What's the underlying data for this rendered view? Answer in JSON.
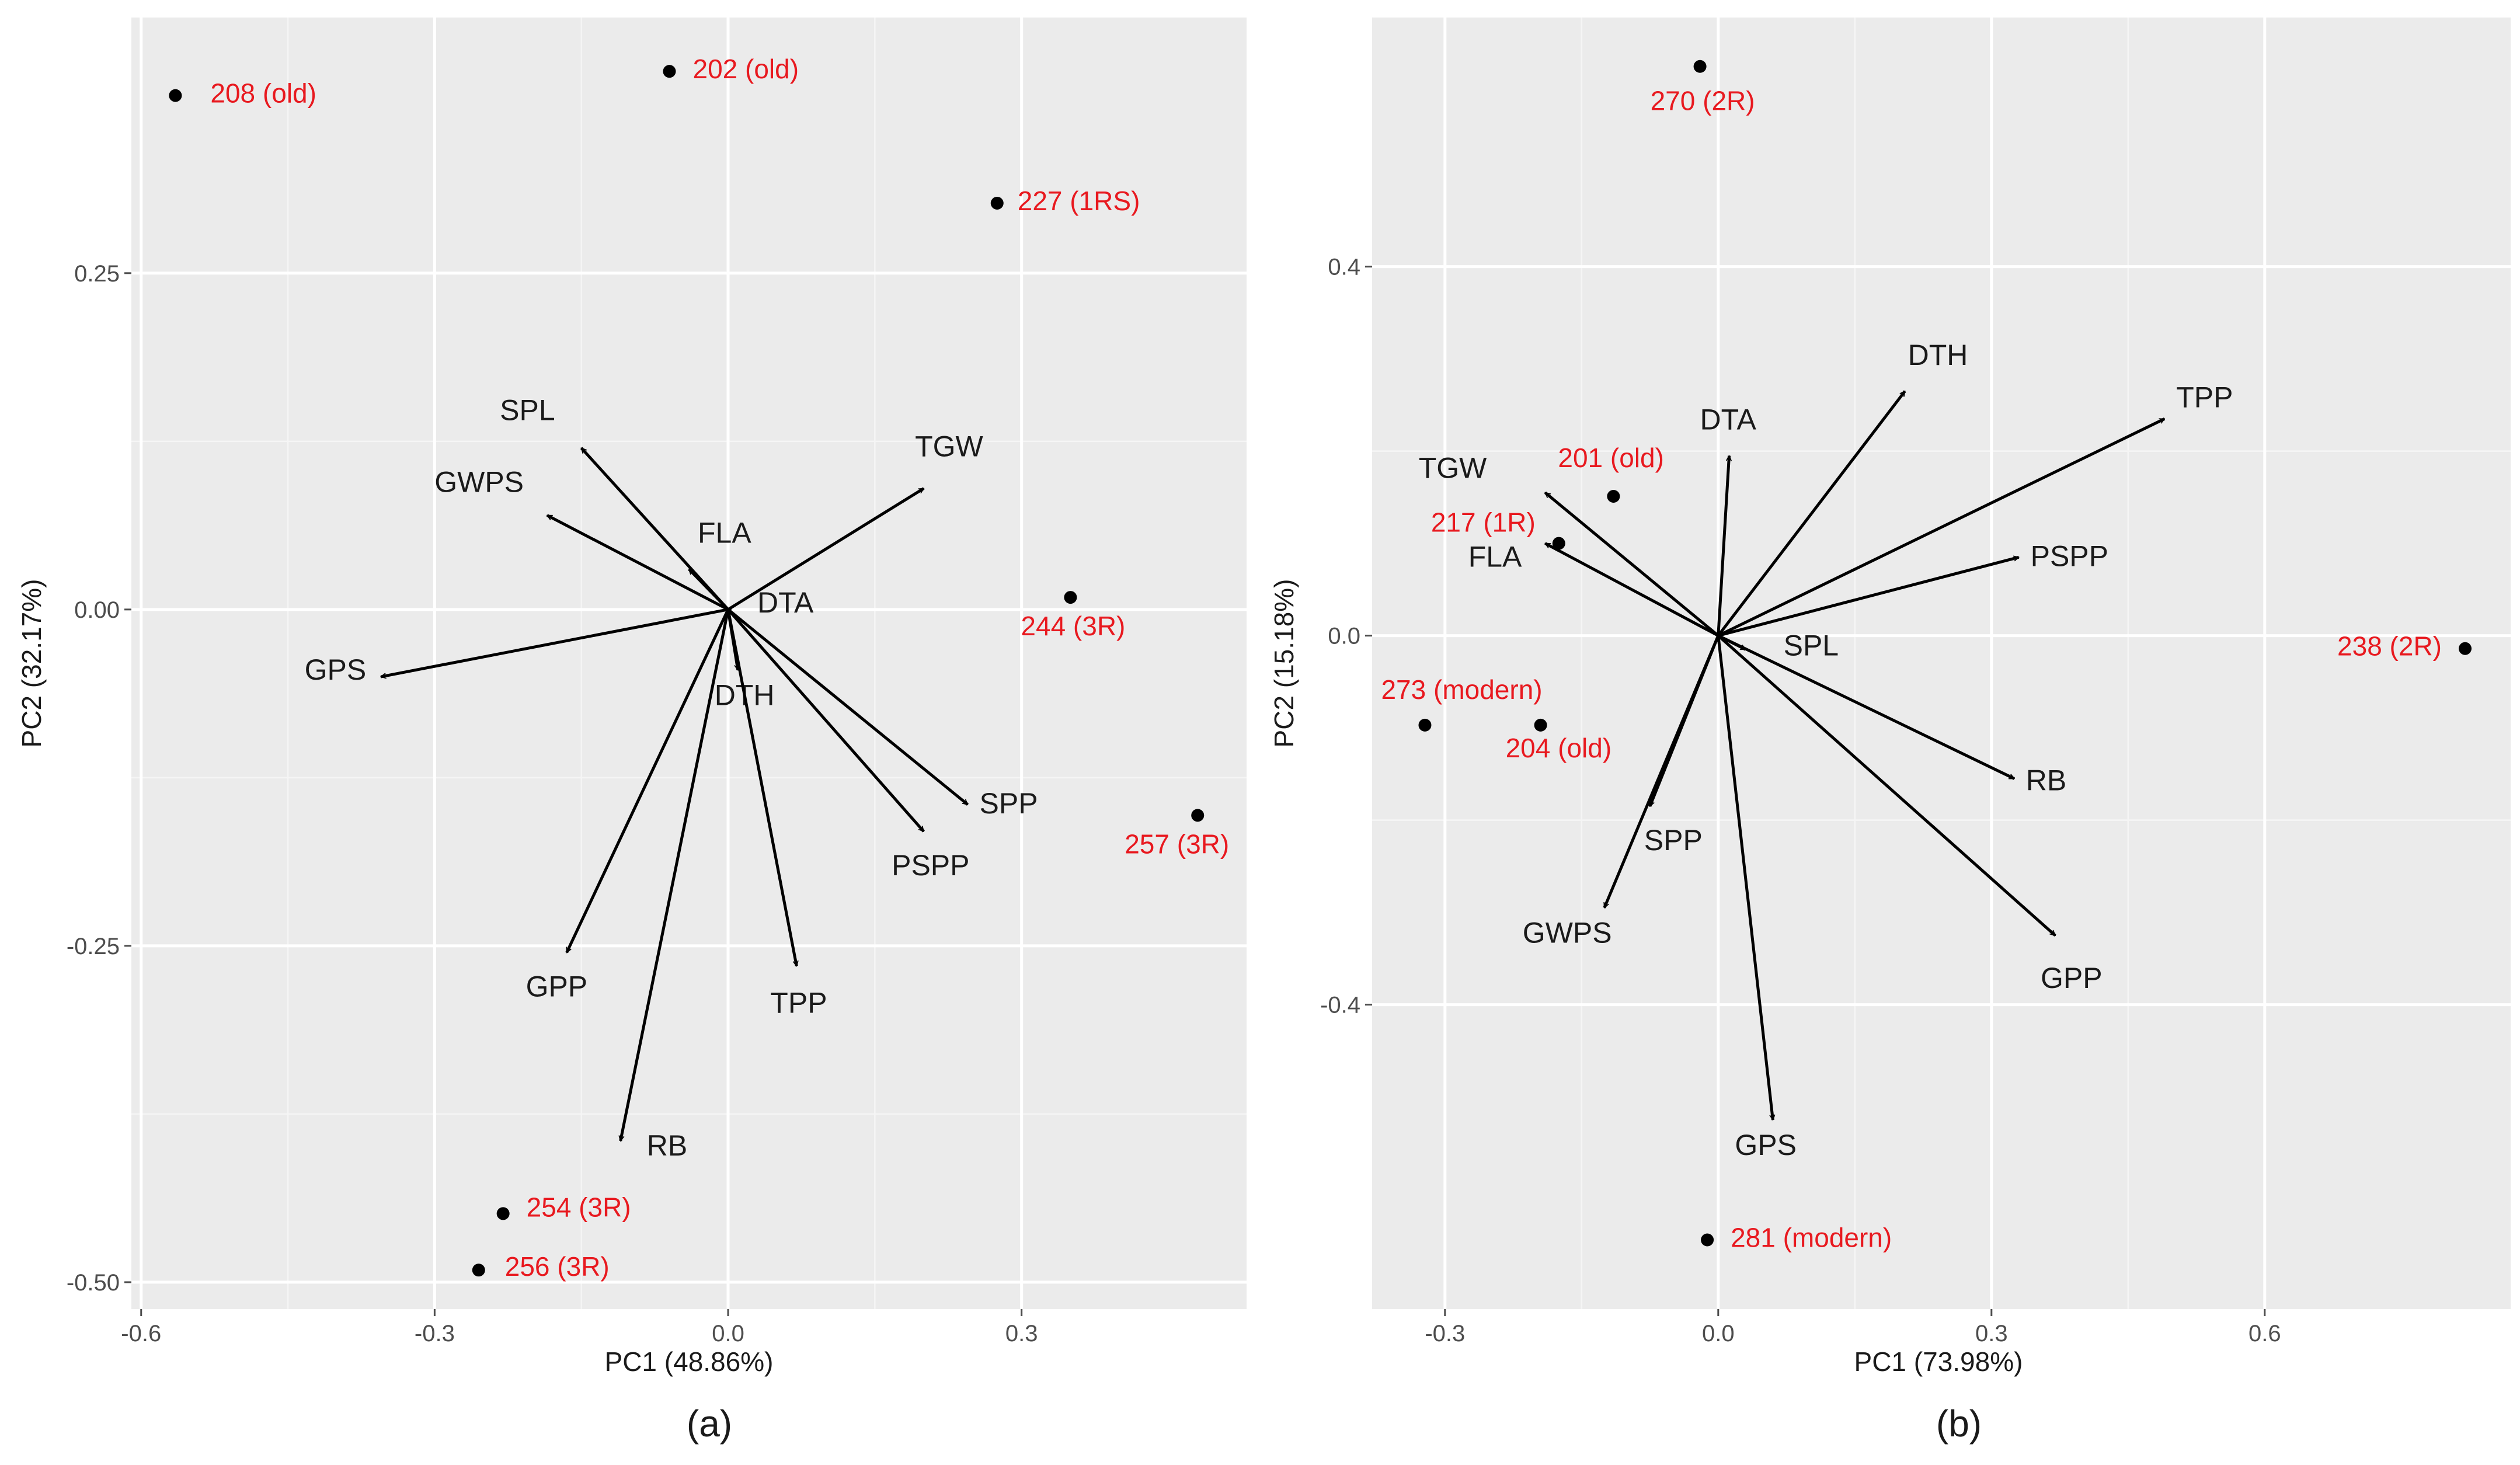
{
  "figure": {
    "colors": {
      "panel_bg": "#ebebeb",
      "label_red": "#e8191f",
      "arrow": "#000000",
      "point": "#000000"
    }
  },
  "chart_data": [
    {
      "id": "a",
      "type": "scatter",
      "subtype": "pca-biplot",
      "caption": "(a)",
      "xlabel": "PC1 (48.86%)",
      "ylabel": "PC2 (32.17%)",
      "xlim": [
        -0.61,
        0.53
      ],
      "ylim": [
        -0.52,
        0.44
      ],
      "xticks": [
        -0.6,
        -0.3,
        0.0,
        0.3
      ],
      "xtick_labels": [
        "-0.6",
        "-0.3",
        "0.0",
        "0.3"
      ],
      "yticks": [
        -0.5,
        -0.25,
        0.0,
        0.25
      ],
      "ytick_labels": [
        "-0.50",
        "-0.25",
        "0.00",
        "0.25"
      ],
      "points": [
        {
          "label": "208 (old)",
          "x": -0.565,
          "y": 0.382
        },
        {
          "label": "202 (old)",
          "x": -0.06,
          "y": 0.4
        },
        {
          "label": "227 (1RS)",
          "x": 0.275,
          "y": 0.302
        },
        {
          "label": "244 (3R)",
          "x": 0.35,
          "y": 0.009
        },
        {
          "label": "257 (3R)",
          "x": 0.48,
          "y": -0.153
        },
        {
          "label": "254 (3R)",
          "x": -0.23,
          "y": -0.449
        },
        {
          "label": "256 (3R)",
          "x": -0.255,
          "y": -0.491
        }
      ],
      "vectors": [
        {
          "label": "SPL",
          "x": -0.15,
          "y": 0.12
        },
        {
          "label": "GWPS",
          "x": -0.185,
          "y": 0.07
        },
        {
          "label": "FLA",
          "x": -0.04,
          "y": 0.03
        },
        {
          "label": "TGW",
          "x": 0.2,
          "y": 0.09
        },
        {
          "label": "DTA",
          "x": 0.003,
          "y": 0.0
        },
        {
          "label": "GPS",
          "x": -0.355,
          "y": -0.05
        },
        {
          "label": "DTH",
          "x": 0.01,
          "y": -0.045
        },
        {
          "label": "SPP",
          "x": 0.245,
          "y": -0.145
        },
        {
          "label": "PSPP",
          "x": 0.2,
          "y": -0.165
        },
        {
          "label": "GPP",
          "x": -0.165,
          "y": -0.255
        },
        {
          "label": "TPP",
          "x": 0.07,
          "y": -0.265
        },
        {
          "label": "RB",
          "x": -0.11,
          "y": -0.395
        }
      ]
    },
    {
      "id": "b",
      "type": "scatter",
      "subtype": "pca-biplot",
      "caption": "(b)",
      "xlabel": "PC1 (73.98%)",
      "ylabel": "PC2 (15.18%)",
      "xlim": [
        -0.38,
        0.87
      ],
      "ylim": [
        -0.73,
        0.67
      ],
      "xticks": [
        -0.3,
        0.0,
        0.3,
        0.6
      ],
      "xtick_labels": [
        "-0.3",
        "0.0",
        "0.3",
        "0.6"
      ],
      "yticks": [
        -0.4,
        0.0,
        0.4
      ],
      "ytick_labels": [
        "-0.4",
        "0.0",
        "0.4"
      ],
      "points": [
        {
          "label": "270 (2R)",
          "x": -0.02,
          "y": 0.617
        },
        {
          "label": "201 (old)",
          "x": -0.115,
          "y": 0.151
        },
        {
          "label": "217 (1R)",
          "x": -0.175,
          "y": 0.1
        },
        {
          "label": "238 (2R)",
          "x": 0.82,
          "y": -0.014
        },
        {
          "label": "273 (modern)",
          "x": -0.322,
          "y": -0.097
        },
        {
          "label": "204 (old)",
          "x": -0.195,
          "y": -0.097
        },
        {
          "label": "281 (modern)",
          "x": -0.012,
          "y": -0.655
        }
      ],
      "vectors": [
        {
          "label": "DTH",
          "x": 0.205,
          "y": 0.265
        },
        {
          "label": "TPP",
          "x": 0.49,
          "y": 0.235
        },
        {
          "label": "DTA",
          "x": 0.012,
          "y": 0.195
        },
        {
          "label": "TGW",
          "x": -0.19,
          "y": 0.155
        },
        {
          "label": "FLA",
          "x": -0.19,
          "y": 0.1
        },
        {
          "label": "PSPP",
          "x": 0.33,
          "y": 0.085
        },
        {
          "label": "SPL",
          "x": 0.03,
          "y": -0.015
        },
        {
          "label": "RB",
          "x": 0.325,
          "y": -0.155
        },
        {
          "label": "SPP",
          "x": -0.075,
          "y": -0.185
        },
        {
          "label": "GWPS",
          "x": -0.125,
          "y": -0.295
        },
        {
          "label": "GPP",
          "x": 0.37,
          "y": -0.325
        },
        {
          "label": "GPS",
          "x": 0.06,
          "y": -0.525
        }
      ]
    }
  ]
}
